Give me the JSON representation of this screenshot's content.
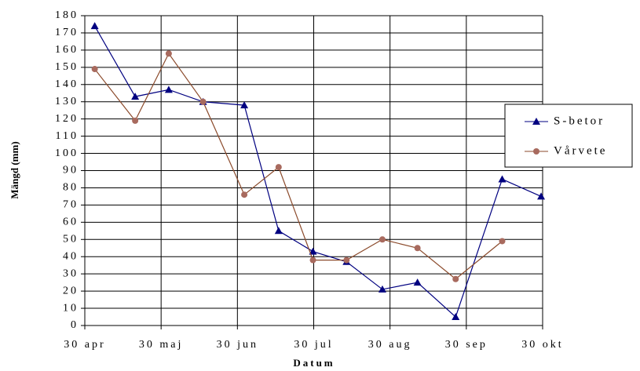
{
  "chart_data": {
    "type": "line",
    "x_label": "Datum",
    "y_label": "Mängd (mm)",
    "xlim": [
      0,
      6
    ],
    "xticks": [
      {
        "value": 0,
        "label": "30 apr"
      },
      {
        "value": 1,
        "label": "30 maj"
      },
      {
        "value": 2,
        "label": "30 jun"
      },
      {
        "value": 3,
        "label": "30 jul"
      },
      {
        "value": 4,
        "label": "30 aug"
      },
      {
        "value": 5,
        "label": "30 sep"
      },
      {
        "value": 6,
        "label": "30 okt"
      }
    ],
    "ylim": [
      0,
      180
    ],
    "yticks": [
      0,
      10,
      20,
      30,
      40,
      50,
      60,
      70,
      80,
      90,
      100,
      110,
      120,
      130,
      140,
      150,
      160,
      170,
      180
    ],
    "grid": true,
    "legend": "right",
    "series": [
      {
        "name": "S-betor",
        "color": "#000080",
        "marker": "triangle",
        "x": [
          0.13,
          0.66,
          1.1,
          1.55,
          2.09,
          2.54,
          2.99,
          3.43,
          3.9,
          4.36,
          4.86,
          5.47,
          5.98
        ],
        "values": [
          174,
          133,
          137,
          130,
          128,
          55,
          43,
          37,
          21,
          25,
          5,
          85,
          75
        ]
      },
      {
        "name": "Vårvete",
        "color": "#8b4a2b",
        "marker": "circle",
        "x": [
          0.13,
          0.66,
          1.1,
          1.55,
          2.09,
          2.54,
          2.99,
          3.43,
          3.9,
          4.36,
          4.86,
          5.47
        ],
        "values": [
          149,
          119,
          158,
          130,
          76,
          92,
          38,
          38,
          50,
          45,
          27,
          49
        ]
      }
    ]
  }
}
